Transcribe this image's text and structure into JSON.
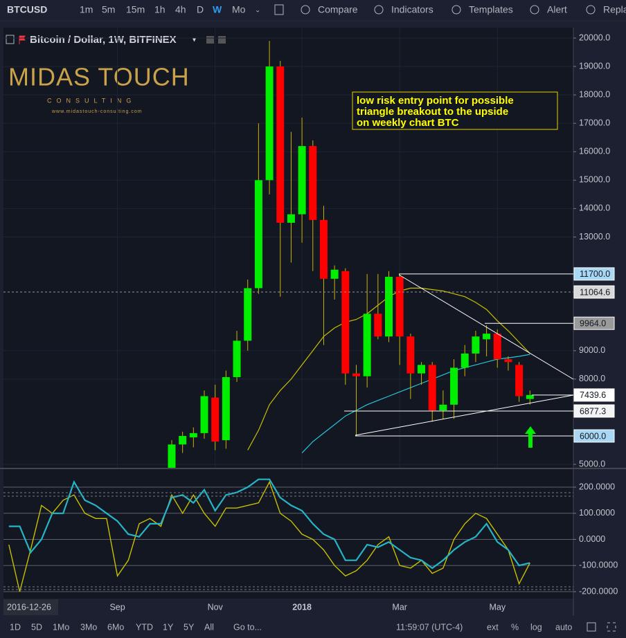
{
  "toolbar": {
    "symbol": "BTCUSD",
    "intervals": [
      "1m",
      "5m",
      "15m",
      "1h",
      "4h",
      "D",
      "W",
      "Mo"
    ],
    "active_interval": "W",
    "buttons": [
      "Compare",
      "Indicators",
      "Templates",
      "Alert",
      "Repla"
    ]
  },
  "bottom_toolbar": {
    "ranges": [
      "1D",
      "5D",
      "1Mo",
      "3Mo",
      "6Mo",
      "YTD",
      "1Y",
      "5Y",
      "All"
    ],
    "goto": "Go to...",
    "clock": "11:59:07 (UTC-4)",
    "options": [
      "ext",
      "%",
      "log",
      "auto"
    ]
  },
  "logo": {
    "name": "MIDAS TOUCH",
    "tagline": "CONSULTING",
    "url": "www.midastouch-consulting.com"
  },
  "chart_data": {
    "type": "candlestick",
    "title": "Bitcoin / Dollar, 1W, BITFINEX",
    "date_label": "2016-12-26",
    "annotation": {
      "lines": [
        "low risk entry point for possible",
        "triangle breakout to the upside",
        "on weekly chart BTC"
      ],
      "color": "#ffff00"
    },
    "up_color": "#00ee00",
    "down_color": "#ff0000",
    "wick_color": "#c8b400",
    "x": [
      0,
      1,
      2,
      3,
      4,
      5,
      6,
      7,
      8,
      9,
      10,
      11,
      12,
      13,
      14,
      15,
      16,
      17,
      18,
      19,
      20,
      21,
      22,
      23,
      24,
      25,
      26,
      27,
      28,
      29,
      30,
      31,
      32,
      33
    ],
    "open": [
      4600,
      5700,
      5950,
      6100,
      7350,
      5850,
      8070,
      9350,
      11200,
      15000,
      19000,
      13500,
      13800,
      16200,
      13600,
      11530,
      11800,
      8200,
      8100,
      10300,
      9500,
      11600,
      9500,
      8200,
      8500,
      6900,
      7100,
      8400,
      8900,
      9400,
      9600,
      8700,
      8500,
      7300
    ],
    "high": [
      5850,
      6150,
      6300,
      7600,
      7800,
      8300,
      9700,
      11500,
      17000,
      19900,
      19200,
      16700,
      17200,
      16400,
      14100,
      12000,
      11900,
      8500,
      11700,
      11700,
      11800,
      11700,
      9600,
      8600,
      8600,
      7600,
      8700,
      9200,
      9700,
      9900,
      9750,
      8800,
      8600,
      7600
    ],
    "low": [
      4500,
      5400,
      5600,
      5900,
      5500,
      5550,
      7900,
      9000,
      11000,
      14500,
      10900,
      12100,
      12800,
      11800,
      9200,
      10800,
      7800,
      6000,
      7700,
      9400,
      9300,
      8500,
      7300,
      7800,
      6500,
      6600,
      6600,
      8100,
      8600,
      8800,
      8400,
      8300,
      7200,
      7100
    ],
    "close": [
      5700,
      6000,
      6100,
      7400,
      5800,
      8070,
      9350,
      11200,
      15000,
      19000,
      13500,
      13800,
      16200,
      13600,
      11530,
      11850,
      8200,
      8100,
      10300,
      9500,
      11600,
      9500,
      8200,
      8500,
      6900,
      7100,
      8400,
      8900,
      9500,
      9600,
      8700,
      8600,
      7400,
      7439.6
    ],
    "moving_averages": [
      {
        "color": "#c8c000",
        "values": [
          null,
          null,
          null,
          null,
          null,
          null,
          null,
          5500,
          6200,
          7100,
          7600,
          8000,
          8500,
          9000,
          9500,
          9800,
          10000,
          10100,
          10300,
          10600,
          10900,
          11100,
          11200,
          11200,
          11150,
          11100,
          11000,
          10900,
          10700,
          10450,
          10050,
          9700,
          9300,
          8900
        ]
      },
      {
        "color": "#26c6da",
        "values": [
          null,
          null,
          null,
          null,
          null,
          null,
          null,
          null,
          null,
          null,
          null,
          null,
          5400,
          5800,
          6100,
          6400,
          6700,
          6900,
          7100,
          7250,
          7400,
          7550,
          7700,
          7850,
          8000,
          8150,
          8300,
          8400,
          8500,
          8600,
          8700,
          8750,
          8800,
          8870
        ]
      }
    ],
    "xlim": [
      -15.5,
      37
    ],
    "xticks": [
      {
        "value": -5,
        "label": "Sep"
      },
      {
        "value": 4,
        "label": "Nov"
      },
      {
        "value": 12,
        "label": "2018"
      },
      {
        "value": 21,
        "label": "Mar"
      },
      {
        "value": 30,
        "label": "May"
      }
    ],
    "ylim": [
      4880,
      20365
    ],
    "yticks": [
      {
        "value": 20000,
        "label": "20000.0"
      },
      {
        "value": 19000,
        "label": "19000.0"
      },
      {
        "value": 18000,
        "label": "18000.0"
      },
      {
        "value": 17000,
        "label": "17000.0"
      },
      {
        "value": 16000,
        "label": "16000.0"
      },
      {
        "value": 15000,
        "label": "15000.0"
      },
      {
        "value": 14000,
        "label": "14000.0"
      },
      {
        "value": 13000,
        "label": "13000.0"
      },
      {
        "value": 9000,
        "label": "9000.0"
      },
      {
        "value": 8000,
        "label": "8000.0"
      },
      {
        "value": 5000,
        "label": "5000.0"
      }
    ],
    "price_labels": [
      {
        "value": 11700,
        "label": "11700.0",
        "background": "#a9d8f5"
      },
      {
        "value": 11064.6,
        "label": "11064.6",
        "background": "#d9d9d9",
        "dashed": true
      },
      {
        "value": 9964,
        "label": "9964.0",
        "background": "#9a9a9a"
      },
      {
        "value": 7439.6,
        "label": "7439.6",
        "background": "#ffffff"
      },
      {
        "value": 6877.3,
        "label": "6877.3",
        "background": "#f4f4f4"
      },
      {
        "value": 6000,
        "label": "6000.0",
        "background": "#a9d8f5"
      }
    ],
    "oscillator": {
      "x": [
        -15,
        -14,
        -13,
        -12,
        -11,
        -10,
        -9,
        -8,
        -7,
        -6,
        -5,
        -4,
        -3,
        -2,
        -1,
        0,
        1,
        2,
        3,
        4,
        5,
        6,
        7,
        8,
        9,
        10,
        11,
        12,
        13,
        14,
        15,
        16,
        17,
        18,
        19,
        20,
        21,
        22,
        23,
        24,
        25,
        26,
        27,
        28,
        29,
        30,
        31,
        32,
        33
      ],
      "ylim": [
        -226.5,
        268.9
      ],
      "yticks": [
        {
          "value": 200,
          "label": "200.0000"
        },
        {
          "value": 100,
          "label": "100.0000"
        },
        {
          "value": 0,
          "label": "0.0000"
        },
        {
          "value": -100,
          "label": "-100.0000"
        },
        {
          "value": -200,
          "label": "-200.0000"
        }
      ],
      "series": [
        {
          "color": "#c8c000",
          "values": [
            -20,
            -200,
            -40,
            130,
            100,
            150,
            170,
            100,
            80,
            80,
            -140,
            -80,
            60,
            80,
            50,
            170,
            100,
            170,
            100,
            50,
            120,
            120,
            130,
            140,
            220,
            100,
            70,
            20,
            0,
            -40,
            -100,
            -140,
            -120,
            -80,
            -20,
            10,
            -100,
            -110,
            -80,
            -130,
            -110,
            0,
            60,
            100,
            80,
            20,
            -40,
            -170,
            -90
          ]
        },
        {
          "color": "#26b5c8",
          "values": [
            50,
            50,
            -50,
            0,
            100,
            100,
            220,
            150,
            130,
            100,
            70,
            20,
            10,
            60,
            60,
            160,
            170,
            140,
            190,
            110,
            170,
            180,
            200,
            230,
            230,
            160,
            130,
            110,
            60,
            20,
            0,
            -80,
            -80,
            -20,
            -30,
            -10,
            -40,
            -70,
            -80,
            -110,
            -80,
            -40,
            -10,
            10,
            60,
            -10,
            -40,
            -100,
            -90
          ]
        }
      ]
    }
  }
}
